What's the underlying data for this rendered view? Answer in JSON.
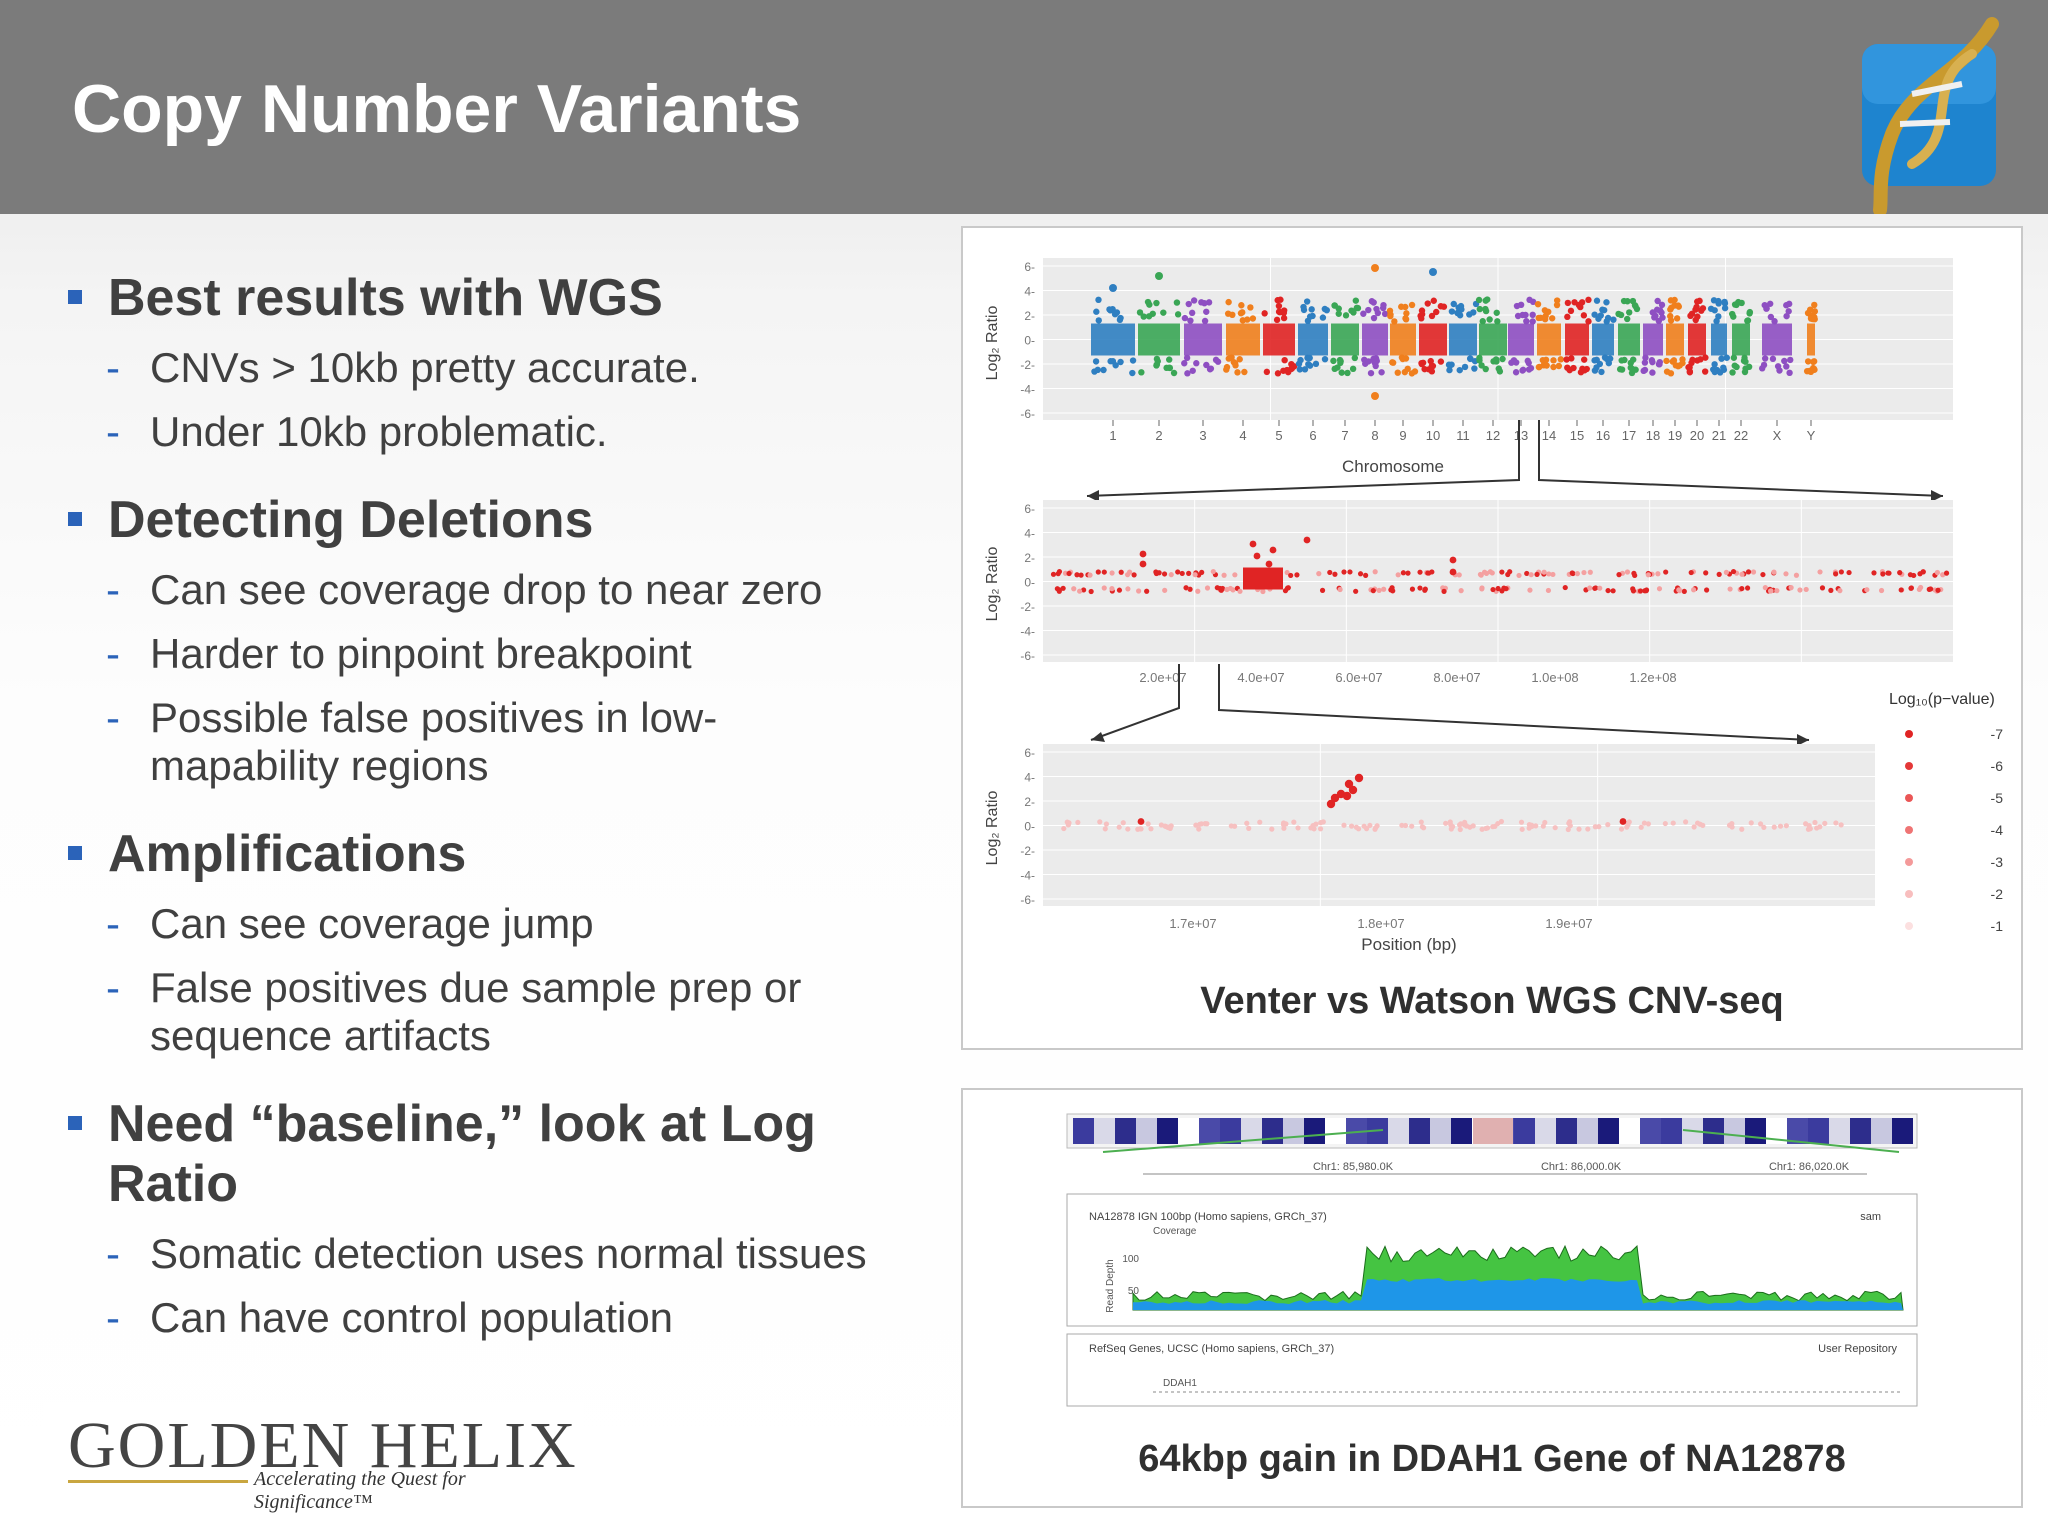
{
  "slide": {
    "title": "Copy Number Variants"
  },
  "bullets": [
    {
      "text": "Best results with WGS",
      "subs": [
        "CNVs > 10kb  pretty accurate.",
        "Under 10kb problematic."
      ]
    },
    {
      "text": "Detecting Deletions",
      "subs": [
        "Can see coverage drop to near zero",
        "Harder to pinpoint breakpoint",
        "Possible false positives in low-mapability regions"
      ]
    },
    {
      "text": "Amplifications",
      "subs": [
        "Can see coverage jump",
        "False positives due sample prep or sequence artifacts"
      ]
    },
    {
      "text": "Need “baseline,” look at Log Ratio",
      "subs": [
        "Somatic detection uses normal tissues",
        "Can have control population"
      ]
    }
  ],
  "figure1": {
    "caption": "Venter vs Watson WGS CNV-seq",
    "ylabel": "Log₂ Ratio",
    "top_xlabel": "Chromosome",
    "bottom_xlabel": "Position (bp)",
    "legend_title": "Log₁₀(p−value)",
    "legend_values": [
      "-7",
      "-6",
      "-5",
      "-4",
      "-3",
      "-2",
      "-1"
    ],
    "yticks": [
      "6",
      "4",
      "2",
      "0",
      "-2",
      "-4",
      "-6"
    ],
    "chromosomes": [
      "1",
      "2",
      "3",
      "4",
      "5",
      "6",
      "7",
      "8",
      "9",
      "10",
      "11",
      "12",
      "13",
      "14",
      "15",
      "16",
      "17",
      "18",
      "19",
      "20",
      "21",
      "22",
      "X",
      "Y"
    ],
    "mid_xticks": [
      "2.0e+07",
      "4.0e+07",
      "6.0e+07",
      "8.0e+07",
      "1.0e+08",
      "1.2e+08"
    ],
    "bottom_xticks": [
      "1.7e+07",
      "1.8e+07",
      "1.9e+07"
    ],
    "chrom_colors": [
      "#2f7fc1",
      "#3aa655",
      "#8e4fc2",
      "#f07f1d",
      "#e02424"
    ]
  },
  "figure2": {
    "caption": "64kbp gain in DDAH1 Gene of NA12878",
    "coords": [
      "Chr1: 85,980.0K",
      "Chr1: 86,000.0K",
      "Chr1: 86,020.0K"
    ],
    "track1_title": "NA12878 IGN 100bp (Homo sapiens, GRCh_37)",
    "track1_right": "sam",
    "track1_sub": "Coverage",
    "track1_ylabel": "Read Depth",
    "track1_ticks": [
      "100",
      "50"
    ],
    "track2_title": "RefSeq Genes, UCSC (Homo sapiens, GRCh_37)",
    "track2_right": "User Repository",
    "gene": "DDAH1"
  },
  "brand": {
    "name": "GOLDEN HELIX",
    "tagline": "Accelerating the Quest for Significance™"
  }
}
